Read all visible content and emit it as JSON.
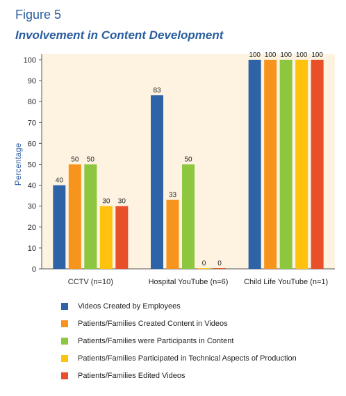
{
  "figure_label": "Figure 5",
  "title": "Involvement in Content Development",
  "chart_data": {
    "type": "bar",
    "title": "Involvement in Content Development",
    "xlabel": "",
    "ylabel": "Percentage",
    "ylim": [
      0,
      100
    ],
    "yticks": [
      0,
      10,
      20,
      30,
      40,
      50,
      60,
      70,
      80,
      90,
      100
    ],
    "grid": false,
    "legend_position": "bottom",
    "background_color": "#fdf3e0",
    "categories": [
      "CCTV (n=10)",
      "Hospital YouTube (n=6)",
      "Child Life YouTube (n=1)"
    ],
    "series": [
      {
        "name": "Videos Created by Employees",
        "color": "#2f63a7",
        "values": [
          40,
          83,
          100
        ]
      },
      {
        "name": "Patients/Families Created Content in Videos",
        "color": "#f7941d",
        "values": [
          50,
          33,
          100
        ]
      },
      {
        "name": "Patients/Families were Participants in Content",
        "color": "#8dc63f",
        "values": [
          50,
          50,
          100
        ]
      },
      {
        "name": "Patients/Families Participated in Technical Aspects of Production",
        "color": "#ffc20e",
        "values": [
          30,
          0,
          100
        ]
      },
      {
        "name": "Patients/Families Edited Videos",
        "color": "#e8502a",
        "values": [
          30,
          0,
          100
        ]
      }
    ]
  }
}
